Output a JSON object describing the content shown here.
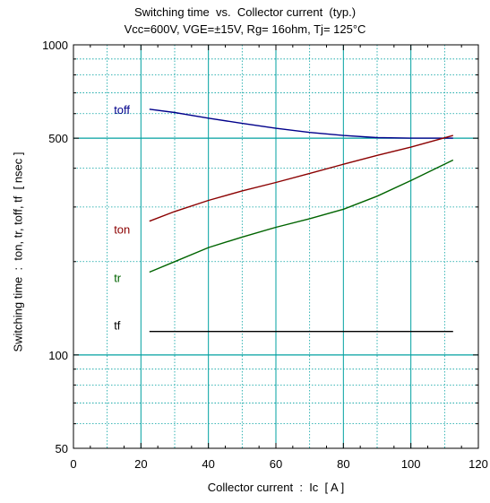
{
  "chart_data": {
    "type": "line",
    "title": "Switching time  vs.  Collector current  (typ.)",
    "subtitle": "Vcc=600V, VGE=±15V, Rg= 16ohm, Tj= 125°C",
    "xlabel": "Collector current  :  Ic  [ A ]",
    "ylabel": "Switching time  :  ton, tr, toff, tf  [ nsec ]",
    "xlim": [
      0,
      120
    ],
    "ylim": [
      50,
      1000
    ],
    "yscale": "log",
    "x_ticks": [
      0,
      20,
      40,
      60,
      80,
      100,
      120
    ],
    "y_tick_labels": [
      50,
      100,
      500,
      1000
    ],
    "grid": true,
    "series": [
      {
        "name": "toff",
        "color": "#00008b",
        "label_at": [
          12,
          620
        ],
        "x": [
          22.5,
          30,
          40,
          50,
          60,
          70,
          80,
          90,
          100,
          112.5
        ],
        "y": [
          620,
          605,
          580,
          558,
          538,
          522,
          510,
          502,
          500,
          500
        ]
      },
      {
        "name": "ton",
        "color": "#8b0000",
        "label_at": [
          12,
          255
        ],
        "x": [
          22.5,
          30,
          40,
          50,
          60,
          70,
          80,
          90,
          100,
          112.5
        ],
        "y": [
          270,
          290,
          315,
          338,
          360,
          385,
          412,
          440,
          468,
          510
        ]
      },
      {
        "name": "tr",
        "color": "#006400",
        "label_at": [
          12,
          178
        ],
        "x": [
          22.5,
          30,
          40,
          50,
          60,
          70,
          80,
          90,
          100,
          112.5
        ],
        "y": [
          185,
          200,
          222,
          240,
          258,
          275,
          295,
          325,
          365,
          425
        ]
      },
      {
        "name": "tf",
        "color": "#000000",
        "label_at": [
          12,
          125
        ],
        "x": [
          22.5,
          112.5
        ],
        "y": [
          119,
          119
        ]
      }
    ]
  }
}
